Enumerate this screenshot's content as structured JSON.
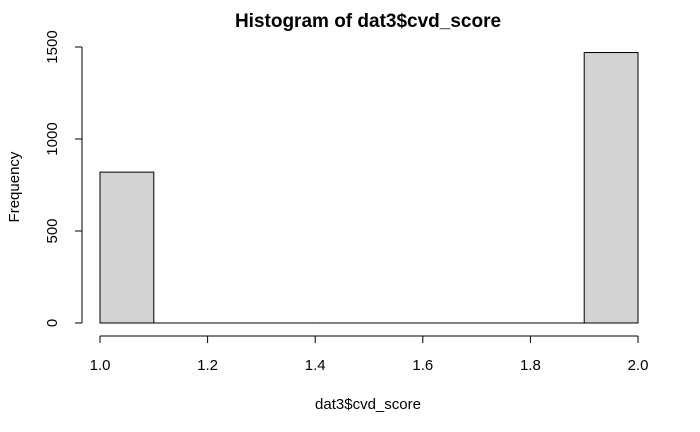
{
  "chart_data": {
    "type": "bar",
    "title": "Histogram of dat3$cvd_score",
    "xlabel": "dat3$cvd_score",
    "ylabel": "Frequency",
    "xlim": [
      1.0,
      2.0
    ],
    "ylim": [
      0,
      1500
    ],
    "x_ticks": [
      "1.0",
      "1.2",
      "1.4",
      "1.6",
      "1.8",
      "2.0"
    ],
    "y_ticks": [
      "0",
      "500",
      "1000",
      "1500"
    ],
    "bin_width": 0.1,
    "bins": [
      {
        "start": 1.0,
        "end": 1.1,
        "count": 820
      },
      {
        "start": 1.1,
        "end": 1.2,
        "count": 0
      },
      {
        "start": 1.2,
        "end": 1.3,
        "count": 0
      },
      {
        "start": 1.3,
        "end": 1.4,
        "count": 0
      },
      {
        "start": 1.4,
        "end": 1.5,
        "count": 0
      },
      {
        "start": 1.5,
        "end": 1.6,
        "count": 0
      },
      {
        "start": 1.6,
        "end": 1.7,
        "count": 0
      },
      {
        "start": 1.7,
        "end": 1.8,
        "count": 0
      },
      {
        "start": 1.8,
        "end": 1.9,
        "count": 0
      },
      {
        "start": 1.9,
        "end": 2.0,
        "count": 1470
      }
    ],
    "grid": false,
    "colors": {
      "bar_fill": "#d3d3d3",
      "bar_stroke": "#000000",
      "axis": "#000000",
      "text": "#000000"
    }
  }
}
